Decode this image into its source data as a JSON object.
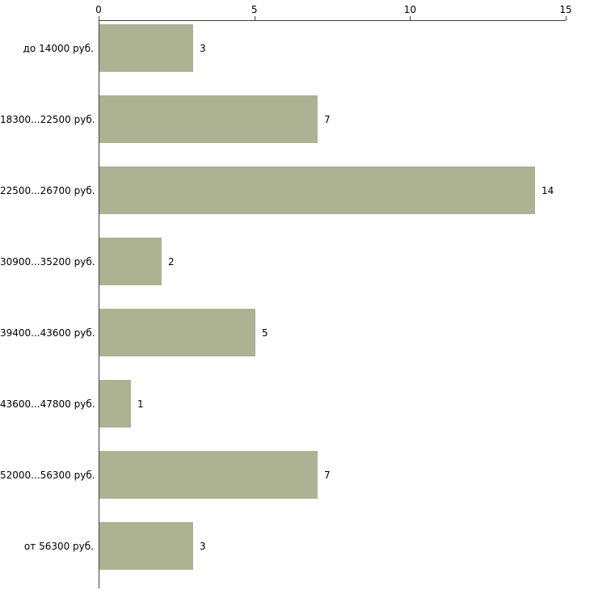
{
  "chart_data": {
    "type": "bar",
    "orientation": "horizontal",
    "title": "",
    "xlabel": "",
    "ylabel": "",
    "categories": [
      "до 14000 руб.",
      "18300...22500 руб.",
      "22500...26700 руб.",
      "30900...35200 руб.",
      "39400...43600 руб.",
      "43600...47800 руб.",
      "52000...56300 руб.",
      "от 56300 руб."
    ],
    "values": [
      3,
      7,
      14,
      2,
      5,
      1,
      7,
      3
    ],
    "xlim": [
      0,
      15
    ],
    "x_ticks": [
      0,
      5,
      10,
      15
    ],
    "x_axis_position": "top",
    "grid": false,
    "legend": false,
    "bar_color": "#adb293",
    "axis_color": "#404040",
    "label_color": "#000000",
    "background": "#ffffff"
  }
}
